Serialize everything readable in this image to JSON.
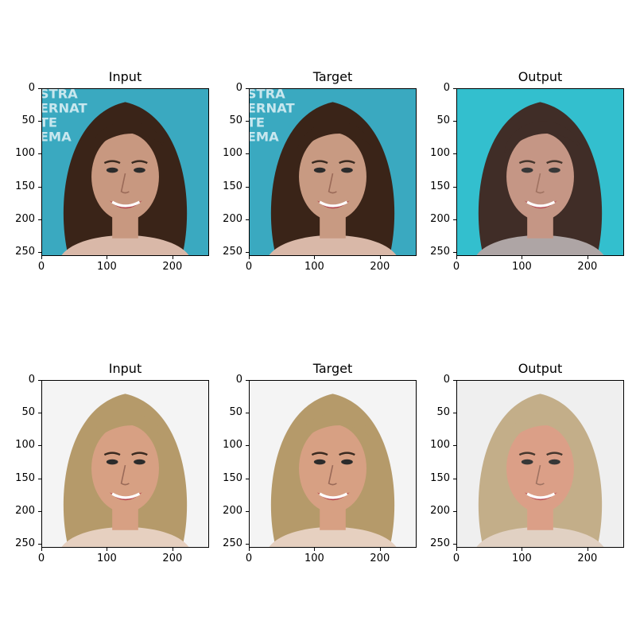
{
  "figure": {
    "rows": [
      {
        "panels": [
          {
            "title": "Input",
            "image": "woman-brunette-face",
            "background": "#3aa9c0",
            "hair": "#3a2418",
            "skin": "#c89880",
            "shirt": "#d9b8a8",
            "overlay_text": [
              "STRA",
              "ERNAT",
              "TE",
              "EMA"
            ]
          },
          {
            "title": "Target",
            "image": "woman-brunette-face",
            "background": "#3aa9c0",
            "hair": "#3a2418",
            "skin": "#c89a82",
            "shirt": "#d9b8a8",
            "overlay_text": [
              "STRA",
              "ERNAT",
              "TE",
              "EMA"
            ]
          },
          {
            "title": "Output",
            "image": "woman-brunette-face-generated",
            "background": "#27bccb",
            "hair": "#35201a",
            "skin": "#c2907e",
            "shirt": "#a9a0a0",
            "overlay_text": []
          }
        ]
      },
      {
        "panels": [
          {
            "title": "Input",
            "image": "woman-blonde-face",
            "background": "#f4f4f4",
            "hair": "#b59a6a",
            "skin": "#d7a083",
            "shirt": "#e6d0c0",
            "overlay_text": []
          },
          {
            "title": "Target",
            "image": "woman-blonde-face",
            "background": "#f4f4f4",
            "hair": "#b59a6a",
            "skin": "#d7a083",
            "shirt": "#e6d0c0",
            "overlay_text": []
          },
          {
            "title": "Output",
            "image": "woman-blonde-face-generated",
            "background": "#eeeeee",
            "hair": "#c0a982",
            "skin": "#d99a80",
            "shirt": "#e0cfc0",
            "overlay_text": []
          }
        ]
      }
    ],
    "y_ticks": [
      "0",
      "50",
      "100",
      "150",
      "200",
      "250"
    ],
    "x_ticks": [
      "0",
      "100",
      "200"
    ]
  }
}
